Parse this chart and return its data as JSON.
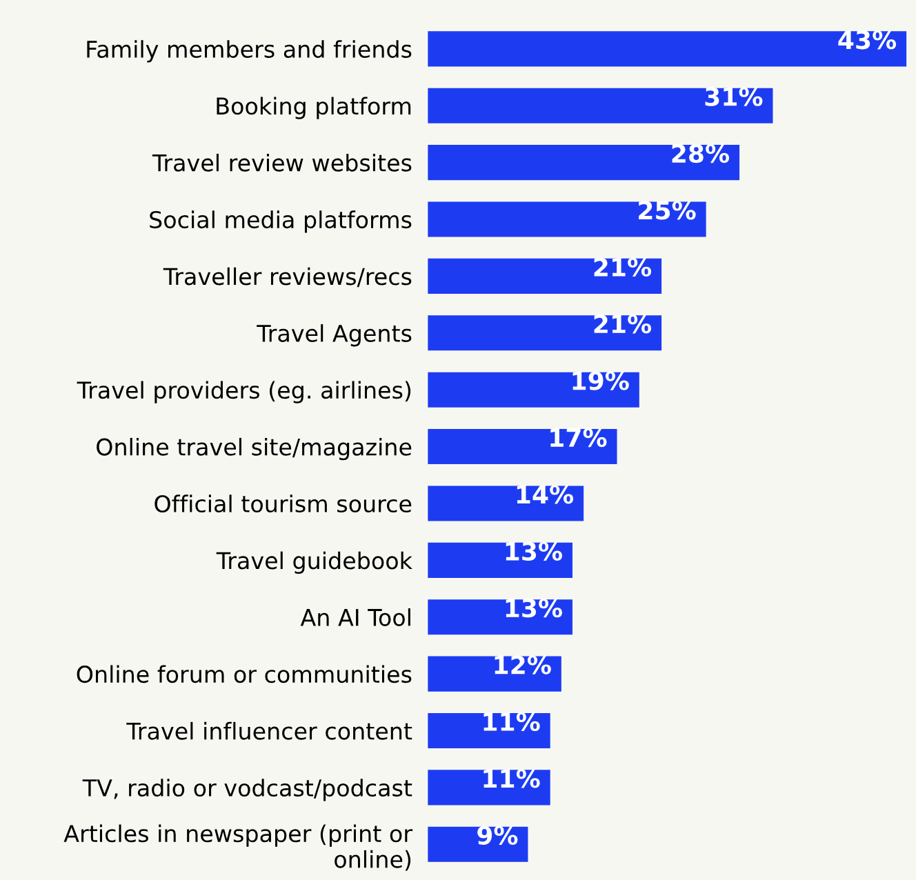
{
  "chart_data": {
    "type": "bar",
    "orientation": "horizontal",
    "value_labels": [
      "43%",
      "31%",
      "28%",
      "25%",
      "21%",
      "21%",
      "19%",
      "17%",
      "14%",
      "13%",
      "13%",
      "12%",
      "11%",
      "11%",
      "9%"
    ],
    "categories": [
      "Family members and friends",
      "Booking platform",
      "Travel review websites",
      "Social media platforms",
      "Traveller reviews/recs",
      "Travel Agents",
      "Travel providers (eg. airlines)",
      "Online travel site/magazine",
      "Official tourism source",
      "Travel guidebook",
      "An AI Tool",
      "Online forum or communities",
      "Travel influencer content",
      "TV, radio or vodcast/podcast",
      "Articles in newspaper (print or\nonline)"
    ],
    "values": [
      43,
      31,
      28,
      25,
      21,
      21,
      19,
      17,
      14,
      13,
      13,
      12,
      11,
      11,
      9
    ],
    "color": "#1d3cf2"
  }
}
